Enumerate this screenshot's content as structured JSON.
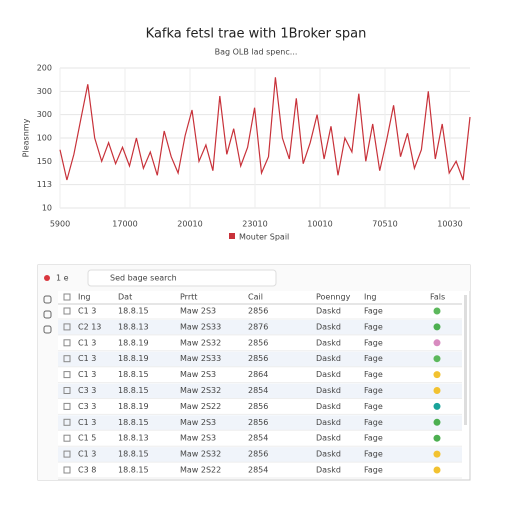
{
  "chart_data": {
    "type": "line",
    "title": "Kafka fetsl trae with 1Broker span",
    "subtitle": "Bag OLB lad spenc...",
    "ylabel": "Pleasnmy",
    "ylim": [
      0,
      6
    ],
    "yticks": [
      {
        "value": 0,
        "label": "10"
      },
      {
        "value": 1,
        "label": "113"
      },
      {
        "value": 2,
        "label": "150"
      },
      {
        "value": 3,
        "label": "100"
      },
      {
        "value": 4,
        "label": "300"
      },
      {
        "value": 5,
        "label": "300"
      },
      {
        "value": 6,
        "label": "200"
      }
    ],
    "xtick_labels": [
      "5900",
      "17000",
      "20010",
      "23010",
      "10010",
      "70510",
      "10030"
    ],
    "grid": true,
    "series": [
      {
        "name": "Mouter Spail",
        "color": "#c8323a",
        "values": [
          2.5,
          1.2,
          2.3,
          3.8,
          5.3,
          3.0,
          2.0,
          2.8,
          1.9,
          2.6,
          1.8,
          3.0,
          1.7,
          2.4,
          1.4,
          3.3,
          2.2,
          1.5,
          3.1,
          4.2,
          2.0,
          2.7,
          1.6,
          4.8,
          2.3,
          3.4,
          1.8,
          2.6,
          4.3,
          1.5,
          2.2,
          5.6,
          3.0,
          2.1,
          4.7,
          1.9,
          2.8,
          4.0,
          2.1,
          3.5,
          1.4,
          3.0,
          2.4,
          4.9,
          2.0,
          3.6,
          1.6,
          2.9,
          4.4,
          2.2,
          3.2,
          1.7,
          2.5,
          5.0,
          2.1,
          3.6,
          1.5,
          2.0,
          1.2,
          3.9
        ]
      }
    ]
  },
  "toolbar": {
    "label": "1 e",
    "search": "Sed bage search"
  },
  "table": {
    "columns": [
      "Ing",
      "Dat",
      "Prrtt",
      "Cail",
      "Poenngy",
      "Ing",
      "Fals"
    ],
    "rows": [
      [
        "C1 3",
        "18.8.15",
        "Maw 2S3",
        "2856",
        "Daskd",
        "Fage"
      ],
      [
        "C2 13",
        "18.8.13",
        "Maw 2S33",
        "2876",
        "Daskd",
        "Fage"
      ],
      [
        "C1 3",
        "18.8.19",
        "Maw 2S32",
        "2856",
        "Daskd",
        "Fage"
      ],
      [
        "C1 3",
        "18.8.19",
        "Maw 2S33",
        "2856",
        "Daskd",
        "Fage"
      ],
      [
        "C1 3",
        "18.8.15",
        "Maw 2S3",
        "2864",
        "Daskd",
        "Fage"
      ],
      [
        "C3 3",
        "18.8.15",
        "Maw 2S32",
        "2854",
        "Daskd",
        "Fage"
      ],
      [
        "C3 3",
        "18.8.19",
        "Maw 2S22",
        "2856",
        "Daskd",
        "Fage"
      ],
      [
        "C1 3",
        "18.8.15",
        "Maw 2S3",
        "2856",
        "Daskd",
        "Fage"
      ],
      [
        "C1 5",
        "18.8.13",
        "Maw 2S3",
        "2854",
        "Daskd",
        "Fage"
      ],
      [
        "C1 3",
        "18.8.15",
        "Maw 2S32",
        "2856",
        "Daskd",
        "Fage"
      ],
      [
        "C3 8",
        "18.8.15",
        "Maw 2S22",
        "2854",
        "Daskd",
        "Fage"
      ]
    ],
    "status_colors": [
      "#5cb85c",
      "#4caf50",
      "#d88bc0",
      "#5cb85c",
      "#f2c230",
      "#f2c230",
      "#1aa39a",
      "#4caf50",
      "#4caf50",
      "#f2c230",
      "#f2c230"
    ]
  }
}
